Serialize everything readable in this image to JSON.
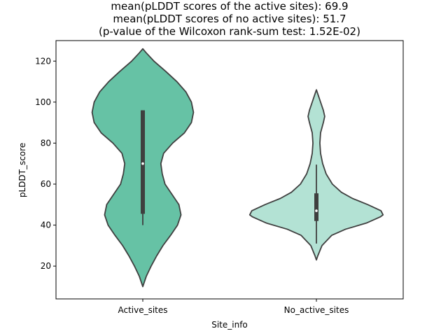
{
  "chart_data": {
    "type": "violin",
    "title": [
      "mean(pLDDT scores of the active sites): 69.9",
      "mean(pLDDT scores of no active sites): 51.7",
      "(p-value of the Wilcoxon rank-sum test: 1.52E-02)"
    ],
    "xlabel": "Site_info",
    "ylabel": "pLDDT_score",
    "categories": [
      "Active_sites",
      "No_active_sites"
    ],
    "ylim": [
      4,
      130
    ],
    "yticks": [
      20,
      40,
      60,
      80,
      100,
      120
    ],
    "grid": false,
    "violins": [
      {
        "category": "Active_sites",
        "color": "#66c2a5",
        "min": 40,
        "q1": 45.5,
        "median": 70,
        "q3": 96,
        "max": 96,
        "kde_extent": [
          10,
          126
        ],
        "profile": [
          [
            10,
            0.0
          ],
          [
            15,
            0.05
          ],
          [
            20,
            0.12
          ],
          [
            25,
            0.2
          ],
          [
            30,
            0.29
          ],
          [
            35,
            0.4
          ],
          [
            40,
            0.5
          ],
          [
            45,
            0.55
          ],
          [
            50,
            0.52
          ],
          [
            55,
            0.42
          ],
          [
            60,
            0.32
          ],
          [
            65,
            0.28
          ],
          [
            70,
            0.26
          ],
          [
            75,
            0.3
          ],
          [
            80,
            0.43
          ],
          [
            85,
            0.6
          ],
          [
            90,
            0.7
          ],
          [
            95,
            0.73
          ],
          [
            100,
            0.7
          ],
          [
            105,
            0.62
          ],
          [
            110,
            0.49
          ],
          [
            115,
            0.33
          ],
          [
            120,
            0.16
          ],
          [
            124,
            0.05
          ],
          [
            126,
            0.0
          ]
        ]
      },
      {
        "category": "No_active_sites",
        "color": "#b3e2d4",
        "min": 31,
        "q1": 42,
        "median": 47,
        "q3": 55.5,
        "max": 69.5,
        "kde_extent": [
          23,
          106
        ],
        "profile": [
          [
            23,
            0.0
          ],
          [
            25,
            0.02
          ],
          [
            30,
            0.08
          ],
          [
            35,
            0.22
          ],
          [
            38,
            0.42
          ],
          [
            41,
            0.72
          ],
          [
            44,
            0.92
          ],
          [
            45,
            0.96
          ],
          [
            47,
            0.93
          ],
          [
            50,
            0.74
          ],
          [
            53,
            0.52
          ],
          [
            56,
            0.36
          ],
          [
            60,
            0.23
          ],
          [
            65,
            0.14
          ],
          [
            70,
            0.09
          ],
          [
            75,
            0.06
          ],
          [
            80,
            0.05
          ],
          [
            85,
            0.06
          ],
          [
            90,
            0.1
          ],
          [
            93,
            0.12
          ],
          [
            96,
            0.1
          ],
          [
            100,
            0.06
          ],
          [
            103,
            0.03
          ],
          [
            106,
            0.0
          ]
        ]
      }
    ]
  }
}
